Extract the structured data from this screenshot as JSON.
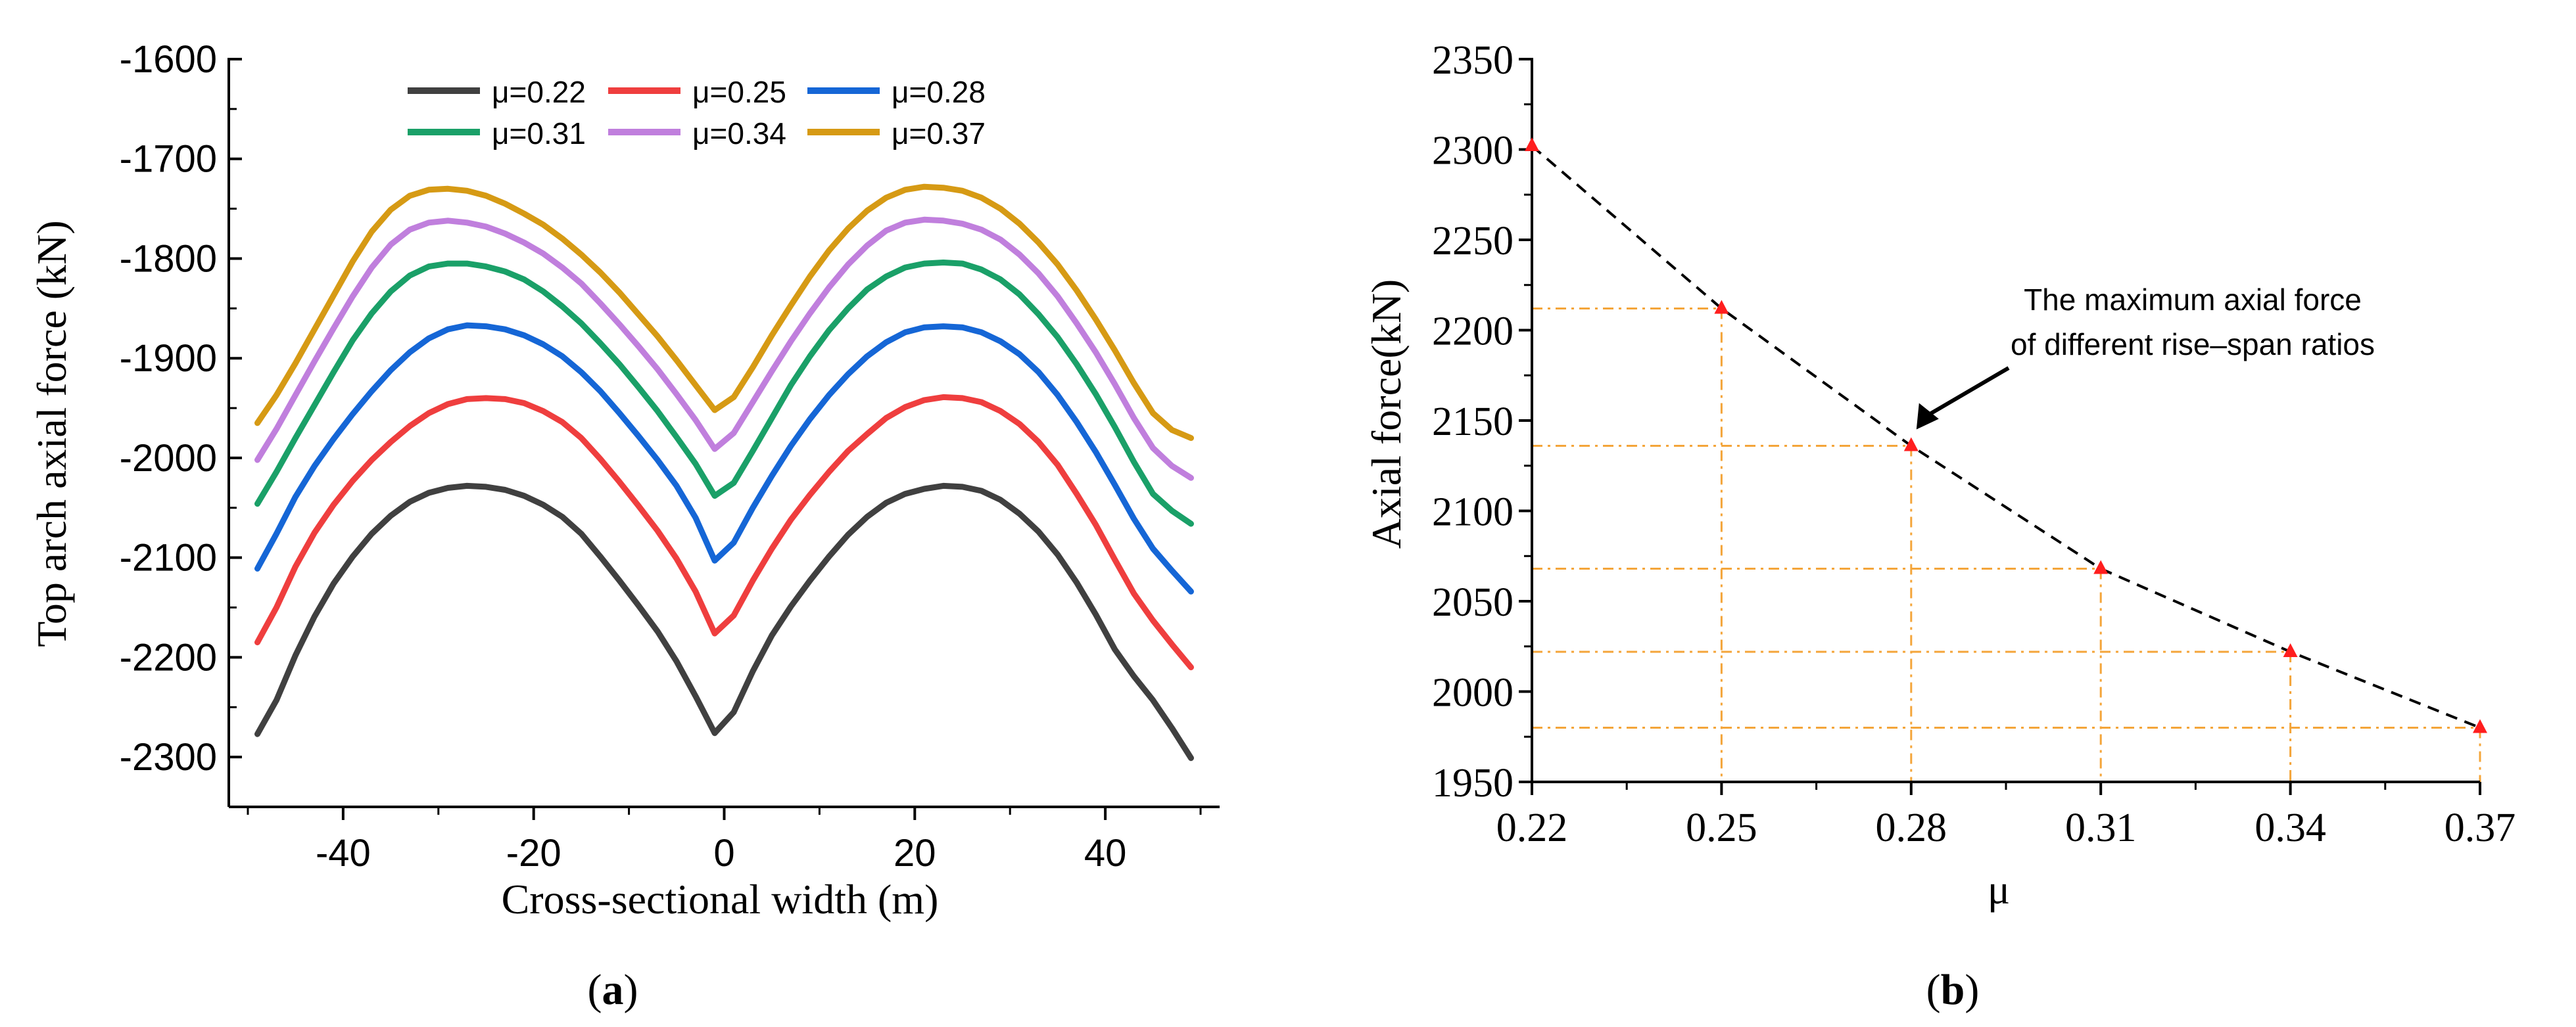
{
  "chart_data": [
    {
      "panel": "a",
      "type": "line",
      "panel_label_parts": [
        "(",
        "a",
        ")"
      ],
      "title": "",
      "xlabel": "Cross-sectional width (m)",
      "ylabel": "Top arch axial force (kN)",
      "xlim": [
        -52,
        52
      ],
      "ylim": [
        -2350,
        -1600
      ],
      "xticks": [
        -40,
        -20,
        0,
        20,
        40
      ],
      "xtick_labels": [
        "-40",
        "-20",
        "0",
        "20",
        "40"
      ],
      "yticks": [
        -1600,
        -1700,
        -1800,
        -1900,
        -2000,
        -2100,
        -2200,
        -2300
      ],
      "ytick_labels": [
        "-1600",
        "-1700",
        "-1800",
        "-1900",
        "-2000",
        "-2100",
        "-2200",
        "-2300"
      ],
      "legend_position": "top, two rows",
      "x": [
        -49,
        -47,
        -45,
        -43,
        -41,
        -39,
        -37,
        -35,
        -33,
        -31,
        -29,
        -27,
        -25,
        -23,
        -21,
        -19,
        -17,
        -15,
        -13,
        -11,
        -9,
        -7,
        -5,
        -3,
        -1,
        1,
        3,
        5,
        7,
        9,
        11,
        13,
        15,
        17,
        19,
        21,
        23,
        25,
        27,
        29,
        31,
        33,
        35,
        37,
        39,
        41,
        43,
        45,
        47,
        49
      ],
      "series": [
        {
          "name": "μ=0.22",
          "color": "#404040",
          "values": [
            -2277,
            -2243,
            -2198,
            -2159,
            -2126,
            -2099,
            -2076,
            -2058,
            -2044,
            -2035,
            -2030,
            -2028,
            -2029,
            -2032,
            -2038,
            -2047,
            -2059,
            -2076,
            -2099,
            -2123,
            -2148,
            -2174,
            -2204,
            -2239,
            -2276,
            -2255,
            -2214,
            -2178,
            -2149,
            -2123,
            -2099,
            -2077,
            -2059,
            -2045,
            -2036,
            -2031,
            -2028,
            -2029,
            -2033,
            -2042,
            -2056,
            -2074,
            -2097,
            -2125,
            -2157,
            -2192,
            -2219,
            -2243,
            -2271,
            -2301
          ]
        },
        {
          "name": "μ=0.25",
          "color": "#ef3e3e",
          "values": [
            -2185,
            -2150,
            -2109,
            -2075,
            -2047,
            -2023,
            -2002,
            -1984,
            -1968,
            -1955,
            -1946,
            -1941,
            -1940,
            -1941,
            -1945,
            -1953,
            -1964,
            -1980,
            -2001,
            -2024,
            -2048,
            -2073,
            -2101,
            -2134,
            -2176,
            -2158,
            -2123,
            -2091,
            -2062,
            -2037,
            -2014,
            -1993,
            -1976,
            -1960,
            -1949,
            -1942,
            -1939,
            -1940,
            -1944,
            -1953,
            -1966,
            -1984,
            -2007,
            -2036,
            -2067,
            -2102,
            -2136,
            -2163,
            -2187,
            -2210
          ]
        },
        {
          "name": "μ=0.28",
          "color": "#1566d6",
          "values": [
            -2111,
            -2076,
            -2039,
            -2008,
            -1981,
            -1956,
            -1933,
            -1912,
            -1894,
            -1880,
            -1871,
            -1867,
            -1868,
            -1871,
            -1877,
            -1886,
            -1898,
            -1914,
            -1933,
            -1955,
            -1978,
            -2002,
            -2028,
            -2060,
            -2103,
            -2085,
            -2050,
            -2018,
            -1988,
            -1961,
            -1937,
            -1916,
            -1898,
            -1884,
            -1874,
            -1869,
            -1868,
            -1869,
            -1874,
            -1883,
            -1896,
            -1914,
            -1937,
            -1964,
            -1994,
            -2027,
            -2061,
            -2091,
            -2113,
            -2134
          ]
        },
        {
          "name": "μ=0.31",
          "color": "#1aa068",
          "values": [
            -2046,
            -2014,
            -1980,
            -1947,
            -1914,
            -1882,
            -1855,
            -1833,
            -1817,
            -1808,
            -1805,
            -1805,
            -1808,
            -1813,
            -1821,
            -1833,
            -1848,
            -1865,
            -1885,
            -1906,
            -1929,
            -1953,
            -1979,
            -2006,
            -2038,
            -2025,
            -1993,
            -1960,
            -1927,
            -1898,
            -1872,
            -1850,
            -1831,
            -1818,
            -1809,
            -1805,
            -1804,
            -1805,
            -1811,
            -1821,
            -1836,
            -1856,
            -1879,
            -1906,
            -1936,
            -1969,
            -2004,
            -2036,
            -2053,
            -2066
          ]
        },
        {
          "name": "μ=0.34",
          "color": "#c07fdd",
          "values": [
            -2002,
            -1971,
            -1937,
            -1903,
            -1870,
            -1838,
            -1809,
            -1786,
            -1771,
            -1764,
            -1762,
            -1764,
            -1768,
            -1775,
            -1784,
            -1795,
            -1809,
            -1825,
            -1845,
            -1866,
            -1888,
            -1911,
            -1936,
            -1962,
            -1991,
            -1975,
            -1944,
            -1913,
            -1883,
            -1855,
            -1829,
            -1806,
            -1787,
            -1772,
            -1764,
            -1761,
            -1762,
            -1765,
            -1771,
            -1781,
            -1796,
            -1815,
            -1838,
            -1865,
            -1894,
            -1926,
            -1960,
            -1990,
            -2008,
            -2020
          ]
        },
        {
          "name": "μ=0.37",
          "color": "#d69a14",
          "values": [
            -1965,
            -1937,
            -1905,
            -1871,
            -1837,
            -1803,
            -1773,
            -1751,
            -1737,
            -1731,
            -1730,
            -1732,
            -1737,
            -1745,
            -1755,
            -1766,
            -1780,
            -1796,
            -1814,
            -1834,
            -1856,
            -1878,
            -1902,
            -1927,
            -1952,
            -1939,
            -1909,
            -1877,
            -1847,
            -1818,
            -1792,
            -1770,
            -1752,
            -1739,
            -1731,
            -1728,
            -1729,
            -1732,
            -1739,
            -1750,
            -1765,
            -1784,
            -1806,
            -1832,
            -1861,
            -1892,
            -1925,
            -1955,
            -1972,
            -1980
          ]
        }
      ]
    },
    {
      "panel": "b",
      "type": "line",
      "panel_label_parts": [
        "(",
        "b",
        ")"
      ],
      "title": "",
      "xlabel": "μ",
      "ylabel": "Axial force(kN)",
      "xlim": [
        0.22,
        0.37
      ],
      "ylim": [
        1950,
        2350
      ],
      "xticks": [
        0.22,
        0.25,
        0.28,
        0.31,
        0.34,
        0.37
      ],
      "xtick_labels": [
        "0.22",
        "0.25",
        "0.28",
        "0.31",
        "0.34",
        "0.37"
      ],
      "yticks": [
        1950,
        2000,
        2050,
        2100,
        2150,
        2200,
        2250,
        2300,
        2350
      ],
      "ytick_labels": [
        "1950",
        "2000",
        "2050",
        "2100",
        "2150",
        "2200",
        "2250",
        "2300",
        "2350"
      ],
      "series": [
        {
          "name": "maximum axial force",
          "color": "#000000",
          "marker_color": "#ff1e1e",
          "line_style": "dashed",
          "x": [
            0.22,
            0.25,
            0.28,
            0.31,
            0.34,
            0.37
          ],
          "values": [
            2302,
            2212,
            2136,
            2068,
            2022,
            1980
          ]
        }
      ],
      "guide_color": "#f4a53a",
      "annotation": {
        "lines": [
          "The maximum axial force",
          "of different rise–span ratios"
        ],
        "arrow_target": [
          0.28,
          2140
        ]
      }
    }
  ]
}
